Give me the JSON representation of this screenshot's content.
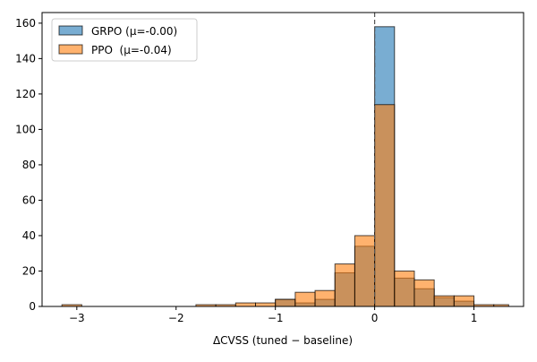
{
  "chart_data": {
    "type": "bar",
    "xlabel": "ΔCVSS (tuned − baseline)",
    "ylabel": "",
    "title": "",
    "xlim": [
      -3.35,
      1.5
    ],
    "ylim": [
      0,
      166
    ],
    "x_ticks": [
      -3,
      -2,
      -1,
      0,
      1
    ],
    "x_tick_labels": [
      "−3",
      "−2",
      "−1",
      "0",
      "1"
    ],
    "y_ticks": [
      0,
      20,
      40,
      60,
      80,
      100,
      120,
      140,
      160
    ],
    "y_tick_labels": [
      "0",
      "20",
      "40",
      "60",
      "80",
      "100",
      "120",
      "140",
      "160"
    ],
    "vline_x": 0,
    "legend_position": "upper-left",
    "series": [
      {
        "name": "GRPO (μ=-0.00)",
        "color": "#1f77b4",
        "bins": [
          [
            -1.0,
            -0.8,
            4
          ],
          [
            -0.8,
            -0.6,
            2
          ],
          [
            -0.6,
            -0.4,
            4
          ],
          [
            -0.4,
            -0.2,
            19
          ],
          [
            -0.2,
            0.0,
            34
          ],
          [
            0.0,
            0.2,
            158
          ],
          [
            0.2,
            0.4,
            16
          ],
          [
            0.4,
            0.6,
            10
          ],
          [
            0.6,
            0.8,
            5
          ],
          [
            0.8,
            1.0,
            3
          ]
        ]
      },
      {
        "name": "PPO  (μ=-0.04)",
        "color": "#ff7f0e",
        "bins": [
          [
            -3.15,
            -2.95,
            1
          ],
          [
            -1.8,
            -1.6,
            1
          ],
          [
            -1.6,
            -1.4,
            1
          ],
          [
            -1.4,
            -1.2,
            2
          ],
          [
            -1.2,
            -1.0,
            2
          ],
          [
            -1.0,
            -0.8,
            4
          ],
          [
            -0.8,
            -0.6,
            8
          ],
          [
            -0.6,
            -0.4,
            9
          ],
          [
            -0.4,
            -0.2,
            24
          ],
          [
            -0.2,
            0.0,
            40
          ],
          [
            0.0,
            0.2,
            114
          ],
          [
            0.2,
            0.4,
            20
          ],
          [
            0.4,
            0.6,
            15
          ],
          [
            0.6,
            0.8,
            6
          ],
          [
            0.8,
            1.0,
            6
          ],
          [
            1.0,
            1.2,
            1
          ],
          [
            1.2,
            1.35,
            1
          ]
        ]
      }
    ]
  }
}
